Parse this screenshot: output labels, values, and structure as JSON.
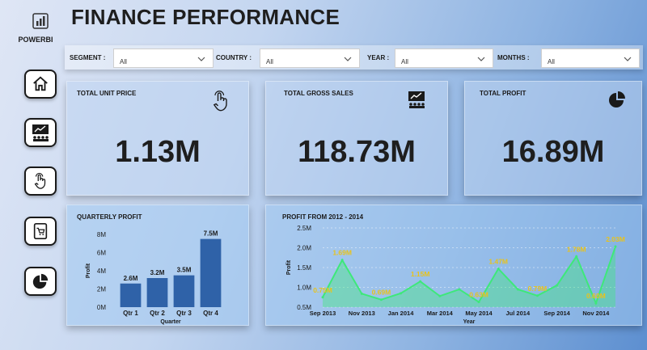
{
  "brand": "POWERBI",
  "title": "FINANCE PERFORMANCE",
  "filters": [
    {
      "label": "SEGMENT :",
      "value": "All"
    },
    {
      "label": "COUNTRY :",
      "value": "All"
    },
    {
      "label": "YEAR :",
      "value": "All"
    },
    {
      "label": "MONTHS :",
      "value": "All"
    }
  ],
  "nav_icons": [
    "home-icon",
    "presentation-icon",
    "touch-icon",
    "cart-icon",
    "pie-icon"
  ],
  "kpis": [
    {
      "title": "TOTAL UNIT PRICE",
      "value": "1.13M",
      "icon": "touch-icon"
    },
    {
      "title": "TOTAL GROSS SALES",
      "value": "118.73M",
      "icon": "presentation-icon"
    },
    {
      "title": "TOTAL PROFIT",
      "value": "16.89M",
      "icon": "pie-icon"
    }
  ],
  "colors": {
    "bar": "#2f62a8",
    "line": "#3ee87a",
    "area": "#3ee87a",
    "label": "#e8c31c"
  },
  "chart_data": [
    {
      "type": "bar",
      "title": "QUARTERLY PROFIT",
      "xlabel": "Quarter",
      "ylabel": "Profit",
      "categories": [
        "Qtr 1",
        "Qtr 2",
        "Qtr 3",
        "Qtr 4"
      ],
      "values": [
        2.6,
        3.2,
        3.5,
        7.5
      ],
      "data_labels": [
        "2.6M",
        "3.2M",
        "3.5M",
        "7.5M"
      ],
      "unit": "M",
      "ylim": [
        0,
        8
      ],
      "yticks": [
        "0M",
        "2M",
        "4M",
        "6M",
        "8M"
      ]
    },
    {
      "type": "area",
      "title": "PROFIT FROM 2012 - 2014",
      "xlabel": "Year",
      "ylabel": "Profit",
      "x": [
        "Sep 2013",
        "Oct 2013",
        "Nov 2013",
        "Dec 2013",
        "Jan 2014",
        "Feb 2014",
        "Mar 2014",
        "Apr 2014",
        "May 2014",
        "Jun 2014",
        "Jul 2014",
        "Aug 2014",
        "Sep 2014",
        "Oct 2014",
        "Nov 2014",
        "Dec 2014"
      ],
      "values": [
        0.75,
        1.69,
        0.84,
        0.69,
        0.85,
        1.15,
        0.78,
        0.95,
        0.63,
        1.47,
        0.95,
        0.79,
        1.05,
        1.78,
        0.6,
        2.03
      ],
      "data_labels": {
        "0": "0.75M",
        "1": "1.69M",
        "3": "0.69M",
        "5": "1.15M",
        "8": "0.63M",
        "9": "1.47M",
        "11": "0.79M",
        "13": "1.78M",
        "14": "0.60M",
        "15": "2.03M"
      },
      "xticks": [
        "Sep 2013",
        "Nov 2013",
        "Jan 2014",
        "Mar 2014",
        "May 2014",
        "Jul 2014",
        "Sep 2014",
        "Nov 2014"
      ],
      "yticks": [
        "0.5M",
        "1.0M",
        "1.5M",
        "2.0M",
        "2.5M"
      ],
      "ylim": [
        0.5,
        2.5
      ],
      "grid": true
    }
  ]
}
